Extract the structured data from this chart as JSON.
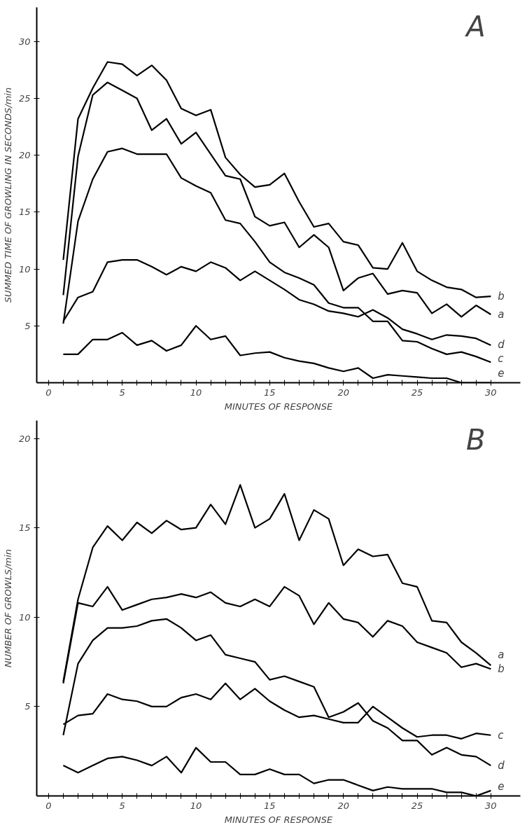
{
  "chart_data": [
    {
      "type": "line",
      "title": "A",
      "xlabel": "MINUTES OF RESPONSE",
      "ylabel": "SUMMED TIME OF GROWLING IN SECONDS/min",
      "x": [
        1,
        2,
        3,
        4,
        5,
        6,
        7,
        8,
        9,
        10,
        11,
        12,
        13,
        14,
        15,
        16,
        17,
        18,
        19,
        20,
        21,
        22,
        23,
        24,
        25,
        26,
        27,
        28,
        29,
        30
      ],
      "xlim": [
        -0.8,
        32
      ],
      "ylim": [
        0,
        33
      ],
      "xticks": [
        0,
        {
          "value": 1,
          "label": null
        },
        {
          "value": 2,
          "label": null
        },
        {
          "value": 3,
          "label": null
        },
        {
          "value": 4,
          "label": null
        },
        5,
        {
          "value": 6,
          "label": null
        },
        {
          "value": 7,
          "label": null
        },
        {
          "value": 8,
          "label": null
        },
        {
          "value": 9,
          "label": null
        },
        10,
        {
          "value": 11,
          "label": null
        },
        {
          "value": 12,
          "label": null
        },
        {
          "value": 13,
          "label": null
        },
        {
          "value": 14,
          "label": null
        },
        15,
        {
          "value": 16,
          "label": null
        },
        {
          "value": 17,
          "label": null
        },
        {
          "value": 18,
          "label": null
        },
        {
          "value": 19,
          "label": null
        },
        20,
        {
          "value": 21,
          "label": null
        },
        {
          "value": 22,
          "label": null
        },
        {
          "value": 23,
          "label": null
        },
        {
          "value": 24,
          "label": null
        },
        25,
        {
          "value": 26,
          "label": null
        },
        {
          "value": 27,
          "label": null
        },
        {
          "value": 28,
          "label": null
        },
        {
          "value": 29,
          "label": null
        },
        30
      ],
      "yticks": [
        5,
        10,
        15,
        20,
        25,
        30
      ],
      "line_style": "solid",
      "series": [
        {
          "name": "b",
          "color": "#000000",
          "values": [
            10.8,
            23.2,
            25.9,
            28.2,
            28.0,
            27.0,
            27.9,
            26.6,
            24.1,
            23.5,
            24.0,
            19.8,
            18.3,
            17.2,
            17.4,
            18.4,
            15.9,
            13.7,
            14.0,
            12.4,
            12.1,
            10.1,
            10.0,
            12.3,
            9.8,
            9.0,
            8.4,
            8.2,
            7.5,
            7.6
          ]
        },
        {
          "name": "a",
          "color": "#000000",
          "values": [
            7.7,
            19.9,
            25.3,
            26.4,
            25.7,
            25.0,
            22.2,
            23.2,
            21.0,
            22.0,
            20.1,
            18.2,
            17.9,
            14.6,
            13.8,
            14.1,
            11.9,
            13.0,
            11.9,
            8.1,
            9.2,
            9.6,
            7.8,
            8.1,
            7.9,
            6.1,
            6.9,
            5.8,
            6.8,
            6.0
          ]
        },
        {
          "name": "c",
          "color": "#000000",
          "values": [
            5.2,
            14.2,
            17.9,
            20.3,
            20.6,
            20.1,
            20.1,
            20.1,
            18.0,
            17.3,
            16.7,
            14.3,
            14.0,
            12.4,
            10.6,
            9.7,
            9.2,
            8.6,
            7.0,
            6.6,
            6.6,
            5.4,
            5.4,
            3.7,
            3.6,
            3.0,
            2.5,
            2.7,
            2.3,
            1.8
          ]
        },
        {
          "name": "d",
          "color": "#000000",
          "values": [
            5.4,
            7.5,
            8.0,
            10.6,
            10.8,
            10.8,
            10.2,
            9.5,
            10.2,
            9.8,
            10.6,
            10.1,
            9.0,
            9.8,
            9.0,
            8.2,
            7.3,
            6.9,
            6.3,
            6.1,
            5.8,
            6.4,
            5.7,
            4.7,
            4.3,
            3.8,
            4.2,
            4.1,
            3.9,
            3.3
          ]
        },
        {
          "name": "e",
          "color": "#000000",
          "values": [
            2.5,
            2.5,
            3.8,
            3.8,
            4.4,
            3.3,
            3.7,
            2.8,
            3.3,
            5.0,
            3.8,
            4.1,
            2.4,
            2.6,
            2.7,
            2.2,
            1.9,
            1.7,
            1.3,
            1.0,
            1.3,
            0.4,
            0.7,
            0.6,
            0.5,
            0.4,
            0.4,
            0.0,
            0.0,
            0.0
          ]
        }
      ]
    },
    {
      "type": "line",
      "title": "B",
      "xlabel": "MINUTES OF RESPONSE",
      "ylabel": "NUMBER OF GROWLS/min",
      "x": [
        1,
        2,
        3,
        4,
        5,
        6,
        7,
        8,
        9,
        10,
        11,
        12,
        13,
        14,
        15,
        16,
        17,
        18,
        19,
        20,
        21,
        22,
        23,
        24,
        25,
        26,
        27,
        28,
        29,
        30
      ],
      "xlim": [
        -0.8,
        32
      ],
      "ylim": [
        0,
        21
      ],
      "xticks": [
        0,
        {
          "value": 1,
          "label": null
        },
        {
          "value": 2,
          "label": null
        },
        {
          "value": 3,
          "label": null
        },
        {
          "value": 4,
          "label": null
        },
        5,
        {
          "value": 6,
          "label": null
        },
        {
          "value": 7,
          "label": null
        },
        {
          "value": 8,
          "label": null
        },
        {
          "value": 9,
          "label": null
        },
        10,
        {
          "value": 11,
          "label": null
        },
        {
          "value": 12,
          "label": null
        },
        {
          "value": 13,
          "label": null
        },
        {
          "value": 14,
          "label": null
        },
        15,
        {
          "value": 16,
          "label": null
        },
        {
          "value": 17,
          "label": null
        },
        {
          "value": 18,
          "label": null
        },
        {
          "value": 19,
          "label": null
        },
        20,
        {
          "value": 21,
          "label": null
        },
        {
          "value": 22,
          "label": null
        },
        {
          "value": 23,
          "label": null
        },
        {
          "value": 24,
          "label": null
        },
        25,
        {
          "value": 26,
          "label": null
        },
        {
          "value": 27,
          "label": null
        },
        {
          "value": 28,
          "label": null
        },
        {
          "value": 29,
          "label": null
        },
        30
      ],
      "yticks": [
        5,
        10,
        15,
        20
      ],
      "line_style": "solid",
      "series": [
        {
          "name": "a",
          "color": "#000000",
          "values": [
            6.4,
            11.0,
            13.9,
            15.1,
            14.3,
            15.3,
            14.7,
            15.4,
            14.9,
            15.0,
            16.3,
            15.2,
            17.4,
            15.0,
            15.5,
            16.9,
            14.3,
            16.0,
            15.5,
            12.9,
            13.8,
            13.4,
            13.5,
            11.9,
            11.7,
            9.8,
            9.7,
            8.6,
            8.0,
            7.3
          ]
        },
        {
          "name": "b",
          "color": "#000000",
          "values": [
            6.3,
            10.8,
            10.6,
            11.7,
            10.4,
            10.7,
            11.0,
            11.1,
            11.3,
            11.1,
            11.4,
            10.8,
            10.6,
            11.0,
            10.6,
            11.7,
            11.2,
            9.6,
            10.8,
            9.9,
            9.7,
            8.9,
            9.8,
            9.5,
            8.6,
            8.3,
            8.0,
            7.2,
            7.4,
            7.1
          ]
        },
        {
          "name": "c",
          "color": "#000000",
          "values": [
            4.0,
            4.5,
            4.6,
            5.7,
            5.4,
            5.3,
            5.0,
            5.0,
            5.5,
            5.7,
            5.4,
            6.3,
            5.4,
            6.0,
            5.3,
            4.8,
            4.4,
            4.5,
            4.3,
            4.1,
            4.1,
            5.0,
            4.4,
            3.8,
            3.3,
            3.4,
            3.4,
            3.2,
            3.5,
            3.4
          ]
        },
        {
          "name": "d",
          "color": "#000000",
          "values": [
            3.4,
            7.4,
            8.7,
            9.4,
            9.4,
            9.5,
            9.8,
            9.9,
            9.4,
            8.7,
            9.0,
            7.9,
            7.7,
            7.5,
            6.5,
            6.7,
            6.4,
            6.1,
            4.4,
            4.7,
            5.2,
            4.2,
            3.8,
            3.1,
            3.1,
            2.3,
            2.7,
            2.3,
            2.2,
            1.7
          ]
        },
        {
          "name": "e",
          "color": "#000000",
          "values": [
            1.7,
            1.3,
            1.7,
            2.1,
            2.2,
            2.0,
            1.7,
            2.2,
            1.3,
            2.7,
            1.9,
            1.9,
            1.2,
            1.2,
            1.5,
            1.2,
            1.2,
            0.7,
            0.9,
            0.9,
            0.6,
            0.3,
            0.5,
            0.4,
            0.4,
            0.4,
            0.2,
            0.2,
            0.0,
            0.3
          ]
        }
      ]
    }
  ]
}
